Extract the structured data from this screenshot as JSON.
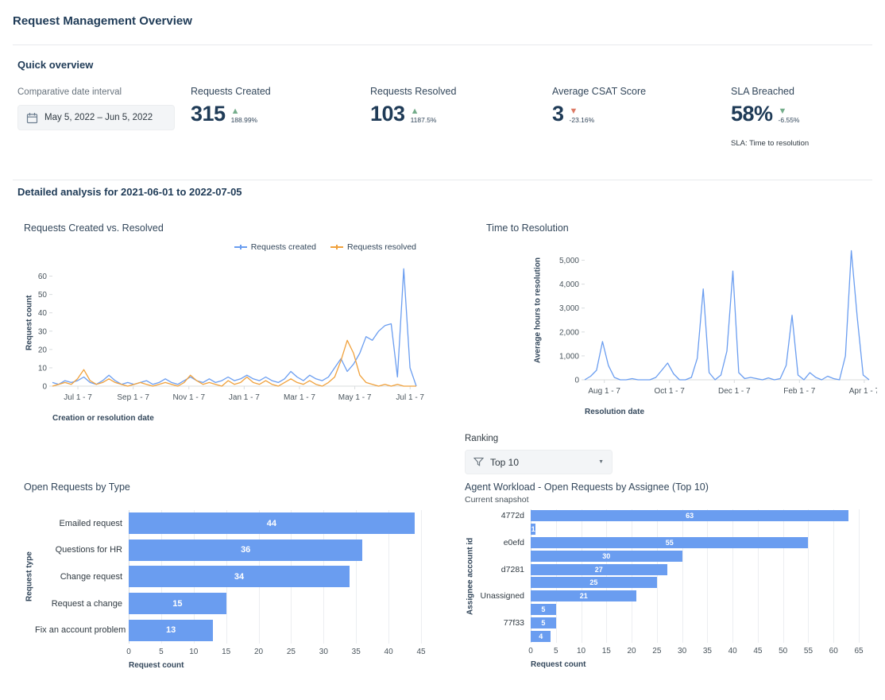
{
  "header": {
    "title": "Request Management Overview"
  },
  "quick": {
    "title": "Quick overview",
    "date_interval_label": "Comparative date interval",
    "date_interval_value": "May 5, 2022  –  Jun 5, 2022",
    "kpis": [
      {
        "label": "Requests Created",
        "value": "315",
        "trend": "up",
        "trend_glyph": "▲",
        "trend_color": "#74ad8b",
        "delta": "188.99%"
      },
      {
        "label": "Requests Resolved",
        "value": "103",
        "trend": "up",
        "trend_glyph": "▲",
        "trend_color": "#74ad8b",
        "delta": "1187.5%"
      },
      {
        "label": "Average CSAT Score",
        "value": "3",
        "trend": "down",
        "trend_glyph": "▼",
        "trend_color": "#dd7a65",
        "delta": "-23.16%"
      },
      {
        "label": "SLA Breached",
        "value": "58%",
        "trend": "down",
        "trend_glyph": "▼",
        "trend_color": "#74ad8b",
        "delta": "-6.55%",
        "footnote": "SLA: Time to resolution"
      }
    ]
  },
  "detailed": {
    "title": "Detailed analysis for 2021-06-01 to 2022-07-05"
  },
  "ranking": {
    "label": "Ranking",
    "selected": "Top 10"
  },
  "chart_data": [
    {
      "type": "line",
      "title": "Requests Created vs. Resolved",
      "xlabel": "Creation or resolution date",
      "ylabel": "Request count",
      "legend_position": "top-right",
      "grid": false,
      "ymax": 65,
      "yticks": [
        {
          "v": 0,
          "label": "0"
        },
        {
          "v": 10,
          "label": "10"
        },
        {
          "v": 20,
          "label": "20"
        },
        {
          "v": 30,
          "label": "30"
        },
        {
          "v": 40,
          "label": "40"
        },
        {
          "v": 50,
          "label": "50"
        },
        {
          "v": 60,
          "label": "60"
        }
      ],
      "xticks": [
        {
          "pos": 0.07,
          "label": "Jul 1 - 7"
        },
        {
          "pos": 0.222,
          "label": "Sep 1 - 7"
        },
        {
          "pos": 0.375,
          "label": "Nov 1 - 7"
        },
        {
          "pos": 0.527,
          "label": "Jan 1 - 7"
        },
        {
          "pos": 0.679,
          "label": "Mar 1 - 7"
        },
        {
          "pos": 0.831,
          "label": "May 1 - 7"
        },
        {
          "pos": 0.983,
          "label": "Jul 1 - 7"
        }
      ],
      "series": [
        {
          "name": "Requests created",
          "color": "#6a9df0",
          "values": [
            2,
            1,
            3,
            2,
            3,
            5,
            2,
            1,
            3,
            6,
            3,
            1,
            2,
            1,
            2,
            3,
            1,
            2,
            4,
            2,
            1,
            3,
            5,
            3,
            2,
            4,
            2,
            3,
            5,
            3,
            4,
            6,
            4,
            3,
            5,
            3,
            2,
            4,
            8,
            5,
            3,
            6,
            4,
            3,
            5,
            10,
            15,
            8,
            12,
            18,
            27,
            25,
            30,
            33,
            34,
            5,
            64,
            10,
            0
          ]
        },
        {
          "name": "Requests resolved",
          "color": "#f0a13c",
          "values": [
            0,
            1,
            2,
            1,
            4,
            9,
            3,
            1,
            2,
            4,
            2,
            1,
            0,
            1,
            2,
            1,
            0,
            1,
            2,
            1,
            0,
            2,
            6,
            3,
            1,
            2,
            1,
            0,
            3,
            1,
            2,
            5,
            2,
            1,
            3,
            1,
            0,
            2,
            4,
            2,
            1,
            3,
            1,
            0,
            2,
            5,
            14,
            25,
            18,
            6,
            2,
            1,
            0,
            1,
            0,
            1,
            0,
            0,
            0
          ]
        }
      ]
    },
    {
      "type": "line",
      "title": "Time to Resolution",
      "xlabel": "Resolution date",
      "ylabel": "Average hours to resolution",
      "grid": false,
      "ymax": 5450,
      "yticks": [
        {
          "v": 0,
          "label": "0"
        },
        {
          "v": 1000,
          "label": "1,000"
        },
        {
          "v": 2000,
          "label": "2,000"
        },
        {
          "v": 3000,
          "label": "3,000"
        },
        {
          "v": 4000,
          "label": "4,000"
        },
        {
          "v": 5000,
          "label": "5,000"
        }
      ],
      "xticks": [
        {
          "pos": 0.069,
          "label": "Aug 1 - 7"
        },
        {
          "pos": 0.298,
          "label": "Oct 1 - 7"
        },
        {
          "pos": 0.526,
          "label": "Dec 1 - 7"
        },
        {
          "pos": 0.755,
          "label": "Feb 1 - 7"
        },
        {
          "pos": 0.983,
          "label": "Apr 1 - 7"
        }
      ],
      "series": [
        {
          "name": "Average hours to resolution",
          "color": "#6a9df0",
          "values": [
            0,
            150,
            400,
            1600,
            600,
            100,
            0,
            0,
            50,
            0,
            0,
            0,
            100,
            400,
            700,
            250,
            0,
            0,
            100,
            900,
            3800,
            300,
            0,
            200,
            1200,
            4550,
            300,
            50,
            100,
            50,
            0,
            80,
            0,
            50,
            600,
            2700,
            200,
            0,
            300,
            100,
            0,
            150,
            50,
            0,
            1000,
            5400,
            2600,
            200,
            0
          ]
        }
      ]
    },
    {
      "type": "bar",
      "title": "Open Requests by Type",
      "xlabel": "Request count",
      "ylabel": "Request type",
      "bar_color": "#6a9df0",
      "grid": true,
      "xmax": 45,
      "xticks": [
        0,
        5,
        10,
        15,
        20,
        25,
        30,
        35,
        40,
        45
      ],
      "categories": [
        "Emailed request",
        "Questions for HR",
        "Change request",
        "Request a change",
        "Fix an account problem"
      ],
      "values": [
        44,
        36,
        34,
        15,
        13
      ]
    },
    {
      "type": "bar",
      "title": "Agent Workload - Open Requests by Assignee (Top 10)",
      "subtitle": "Current snapshot",
      "xlabel": "Request count",
      "ylabel": "Assignee account id",
      "bar_color": "#6a9df0",
      "grid": true,
      "xmax": 65,
      "xticks": [
        0,
        5,
        10,
        15,
        20,
        25,
        30,
        35,
        40,
        45,
        50,
        55,
        60,
        65
      ],
      "categories": [
        "4772d",
        "",
        "e0efd",
        "",
        "d7281",
        "",
        "Unassigned",
        "",
        "77f33",
        ""
      ],
      "values": [
        63,
        1,
        55,
        30,
        27,
        25,
        21,
        5,
        5,
        4
      ]
    }
  ]
}
